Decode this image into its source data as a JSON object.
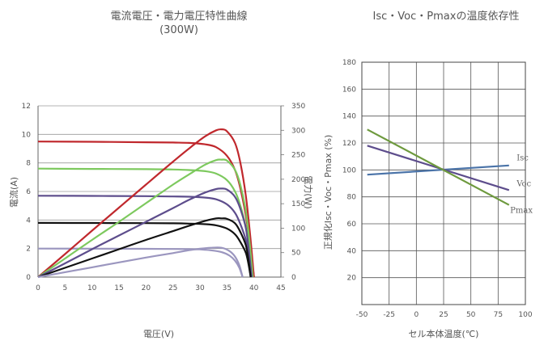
{
  "chart_data": [
    {
      "type": "line",
      "title": "電流電圧・電力電圧特性曲線",
      "subtitle": "(300W)",
      "xlabel": "電圧(V)",
      "ylabel": "電流(A)",
      "y2label": "電力(W)",
      "xlim": [
        0,
        45
      ],
      "ylim": [
        0,
        12
      ],
      "y2lim": [
        0,
        350
      ],
      "xticks": [
        0,
        5,
        10,
        15,
        20,
        25,
        30,
        35,
        40,
        45
      ],
      "yticks": [
        0,
        2,
        4,
        6,
        8,
        10,
        12
      ],
      "y2ticks": [
        0,
        50,
        100,
        150,
        200,
        250,
        300,
        350
      ],
      "grid": true,
      "colors": [
        "#c0282d",
        "#7dc95e",
        "#5d4d8c",
        "#111111",
        "#9b96bf"
      ],
      "series": [
        {
          "axis": "current",
          "color": "#c0282d",
          "x": [
            0,
            10,
            20,
            25,
            28,
            31,
            33,
            35,
            36.5,
            37.5,
            38.5,
            39.3,
            40
          ],
          "y": [
            9.5,
            9.48,
            9.45,
            9.43,
            9.4,
            9.3,
            9.1,
            8.5,
            7.5,
            6.2,
            4.3,
            2.2,
            0
          ]
        },
        {
          "axis": "current",
          "color": "#7dc95e",
          "x": [
            0,
            10,
            20,
            25,
            28,
            31,
            33,
            35,
            36.5,
            37.5,
            38.5,
            39.2,
            39.8
          ],
          "y": [
            7.6,
            7.58,
            7.56,
            7.54,
            7.5,
            7.42,
            7.25,
            6.8,
            6.0,
            5.0,
            3.5,
            1.8,
            0
          ]
        },
        {
          "axis": "current",
          "color": "#5d4d8c",
          "x": [
            0,
            10,
            20,
            25,
            28,
            31,
            33,
            35,
            36.5,
            37.5,
            38.5,
            39.1,
            39.6
          ],
          "y": [
            5.7,
            5.69,
            5.67,
            5.65,
            5.63,
            5.57,
            5.45,
            5.1,
            4.5,
            3.7,
            2.6,
            1.3,
            0
          ]
        },
        {
          "axis": "current",
          "color": "#111111",
          "x": [
            0,
            10,
            20,
            25,
            28,
            31,
            33,
            35,
            36.5,
            37.5,
            38.5,
            39,
            39.4
          ],
          "y": [
            3.8,
            3.79,
            3.78,
            3.77,
            3.75,
            3.71,
            3.63,
            3.4,
            3.0,
            2.45,
            1.7,
            0.9,
            0
          ]
        },
        {
          "axis": "current",
          "color": "#9b96bf",
          "x": [
            0,
            10,
            20,
            25,
            28,
            30,
            32,
            34,
            35.5,
            36.5,
            37.3,
            37.9
          ],
          "y": [
            2.0,
            1.99,
            1.98,
            1.97,
            1.96,
            1.94,
            1.88,
            1.75,
            1.5,
            1.15,
            0.65,
            0
          ]
        },
        {
          "axis": "power",
          "color": "#c0282d",
          "x": [
            0,
            5,
            10,
            15,
            20,
            25,
            28,
            31,
            33,
            34,
            35,
            36.5,
            37.5,
            38.5,
            39.3,
            40
          ],
          "y": [
            0,
            47,
            95,
            142,
            189,
            236,
            263,
            288,
            300,
            302,
            298,
            274,
            233,
            166,
            86,
            0
          ]
        },
        {
          "axis": "power",
          "color": "#7dc95e",
          "x": [
            0,
            5,
            10,
            15,
            20,
            25,
            28,
            31,
            33,
            34,
            35,
            36.5,
            37.5,
            38.5,
            39.2,
            39.8
          ],
          "y": [
            0,
            38,
            76,
            113,
            151,
            189,
            210,
            230,
            239,
            240,
            238,
            219,
            188,
            135,
            71,
            0
          ]
        },
        {
          "axis": "power",
          "color": "#5d4d8c",
          "x": [
            0,
            5,
            10,
            15,
            20,
            25,
            28,
            31,
            33,
            34,
            35,
            36.5,
            37.5,
            38.5,
            39.1,
            39.6
          ],
          "y": [
            0,
            28,
            57,
            85,
            113,
            141,
            158,
            173,
            180,
            181,
            179,
            164,
            139,
            100,
            51,
            0
          ]
        },
        {
          "axis": "power",
          "color": "#111111",
          "x": [
            0,
            5,
            10,
            15,
            20,
            25,
            28,
            31,
            33,
            34,
            35,
            36.5,
            37.5,
            38.5,
            39,
            39.4
          ],
          "y": [
            0,
            19,
            38,
            57,
            76,
            94,
            105,
            115,
            120,
            120,
            119,
            110,
            92,
            65,
            35,
            0
          ]
        },
        {
          "axis": "power",
          "color": "#9b96bf",
          "x": [
            0,
            5,
            10,
            15,
            20,
            25,
            28,
            30,
            32,
            34,
            35.5,
            36.5,
            37.3,
            37.9
          ],
          "y": [
            0,
            10,
            20,
            30,
            40,
            49,
            55,
            58,
            60,
            60,
            53,
            42,
            24,
            0
          ]
        }
      ]
    },
    {
      "type": "line",
      "title": "Isc・Voc・Pmaxの温度依存性",
      "xlabel": "セル本体温度(℃)",
      "ylabel": "正規化Isc・Voc・Pmax (%)",
      "xlim": [
        -50,
        100
      ],
      "ylim": [
        0,
        180
      ],
      "xticks": [
        -50,
        -25,
        0,
        25,
        50,
        75,
        100
      ],
      "yticks": [
        20,
        40,
        60,
        80,
        100,
        120,
        140,
        160,
        180
      ],
      "xticklabels": [
        "-50",
        "-25",
        "0",
        "25",
        "50",
        "75",
        "100"
      ],
      "grid": true,
      "series": [
        {
          "name": "Isc",
          "color": "#4a73a8",
          "x": [
            -45,
            85
          ],
          "y": [
            96.5,
            103.3
          ]
        },
        {
          "name": "Voc",
          "color": "#5d4d8c",
          "x": [
            -45,
            85
          ],
          "y": [
            118,
            85
          ]
        },
        {
          "name": "Pmax",
          "color": "#6e9a3e",
          "x": [
            -45,
            85
          ],
          "y": [
            130,
            74
          ]
        }
      ]
    }
  ]
}
